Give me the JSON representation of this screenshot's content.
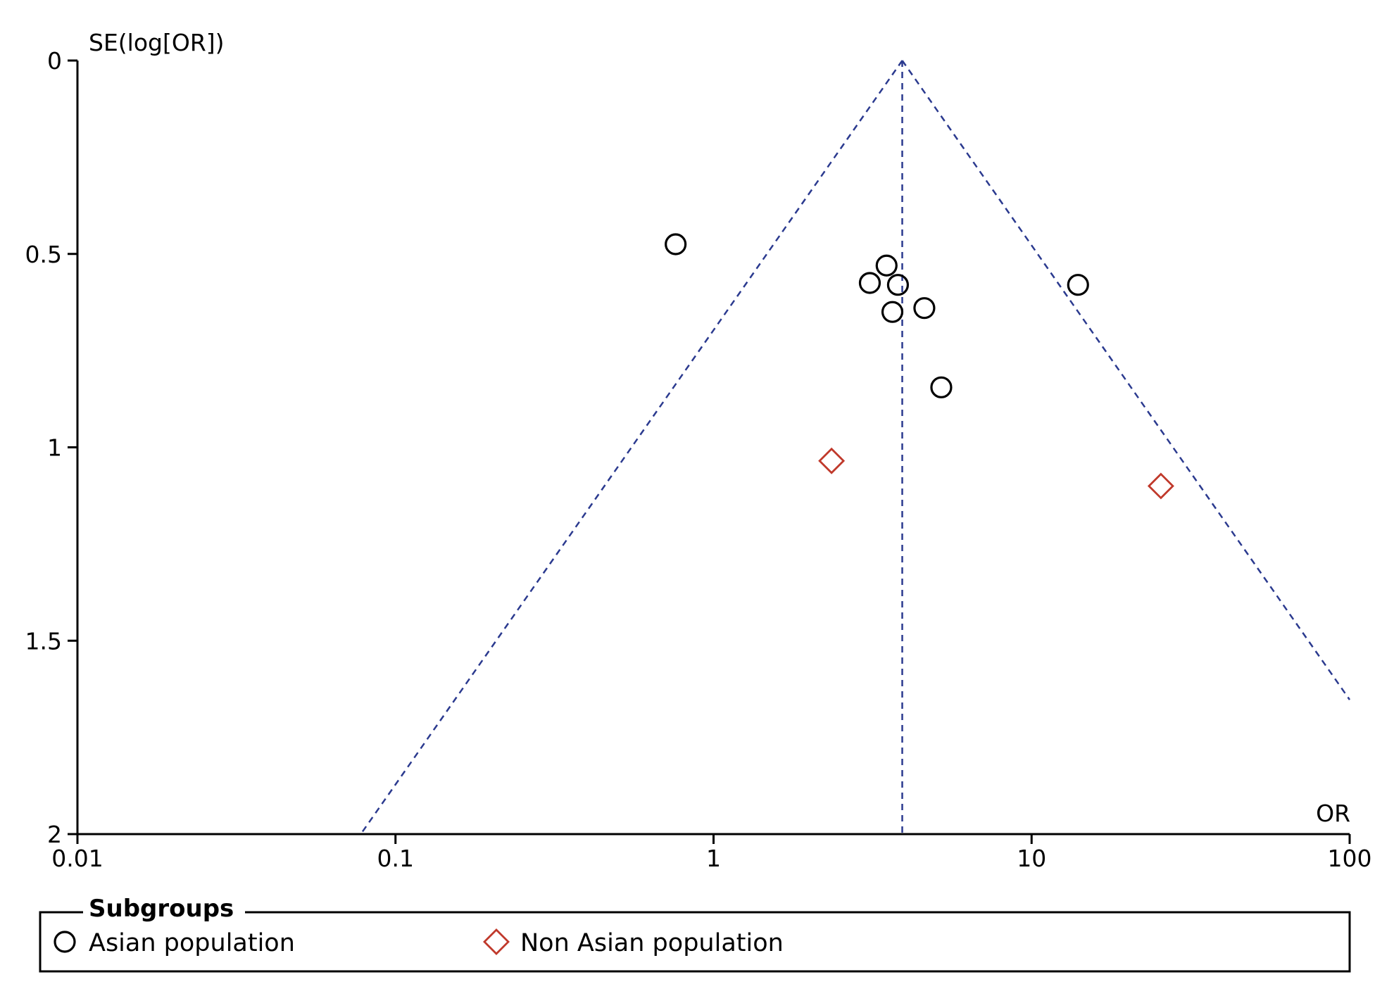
{
  "chart_data": {
    "type": "scatter",
    "subtype": "funnel-plot",
    "x_axis": {
      "label": "OR",
      "scale": "log",
      "range": [
        0.01,
        100
      ],
      "ticks": [
        {
          "value": 0.01,
          "label": "0.01"
        },
        {
          "value": 0.1,
          "label": "0.1"
        },
        {
          "value": 1,
          "label": "1"
        },
        {
          "value": 10,
          "label": "10"
        },
        {
          "value": 100,
          "label": "100"
        }
      ]
    },
    "y_axis": {
      "label": "SE(log[OR])",
      "range": [
        0,
        2
      ],
      "inverted": true,
      "ticks": [
        {
          "value": 0,
          "label": "0"
        },
        {
          "value": 0.5,
          "label": "0.5"
        },
        {
          "value": 1,
          "label": "1"
        },
        {
          "value": 1.5,
          "label": "1.5"
        },
        {
          "value": 2,
          "label": "2"
        }
      ]
    },
    "pooled_or": 3.92,
    "funnel_z": 1.96,
    "grid": false,
    "legend": {
      "title": "Subgroups",
      "position": "bottom"
    },
    "series": [
      {
        "name": "Asian population",
        "marker": "circle",
        "color": "#000000",
        "points": [
          {
            "x": 0.76,
            "y": 0.475
          },
          {
            "x": 3.5,
            "y": 0.53
          },
          {
            "x": 3.1,
            "y": 0.575
          },
          {
            "x": 3.8,
            "y": 0.58
          },
          {
            "x": 3.65,
            "y": 0.65
          },
          {
            "x": 4.6,
            "y": 0.64
          },
          {
            "x": 14.0,
            "y": 0.58
          },
          {
            "x": 5.2,
            "y": 0.845
          }
        ]
      },
      {
        "name": "Non Asian population",
        "marker": "diamond",
        "color": "#c0392b",
        "points": [
          {
            "x": 2.35,
            "y": 1.035
          },
          {
            "x": 25.5,
            "y": 1.1
          }
        ]
      }
    ]
  }
}
